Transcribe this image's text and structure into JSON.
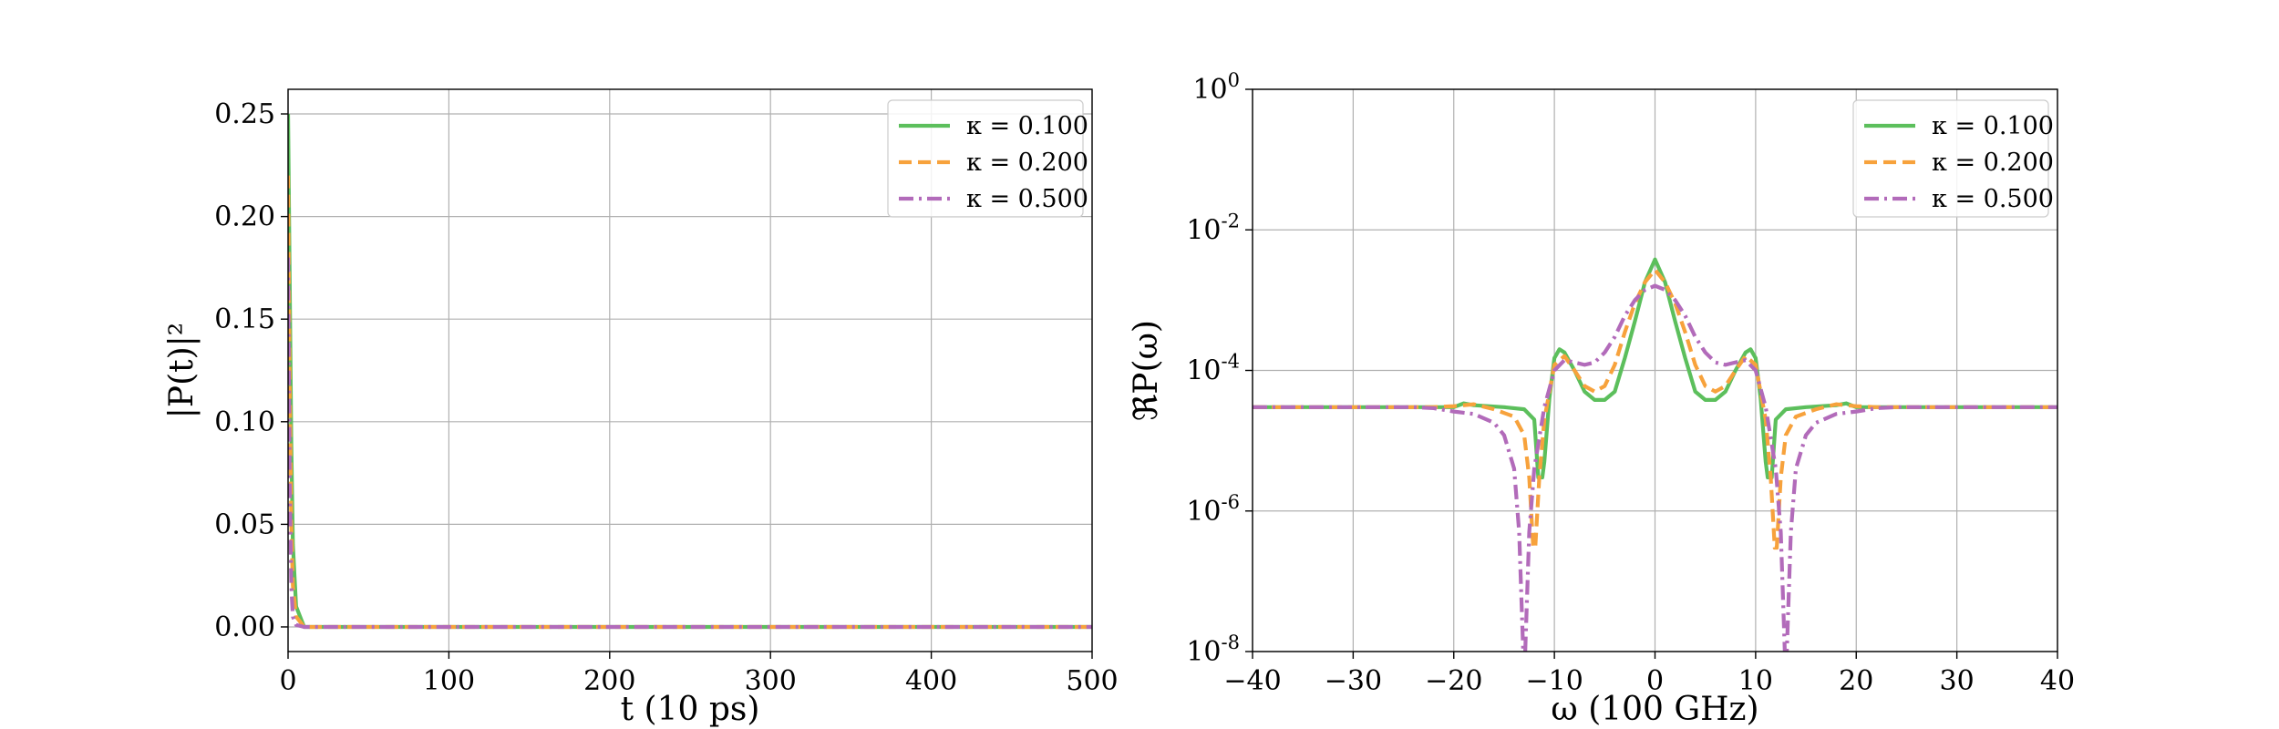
{
  "colors": {
    "green": "#5cbf5c",
    "orange": "#f7a23c",
    "purple": "#b26bba"
  },
  "chart_data": [
    {
      "type": "line",
      "xlabel": "t (10 ps)",
      "ylabel": "|P(t)|²",
      "xlim": [
        0,
        500
      ],
      "ylim": [
        -0.012,
        0.262
      ],
      "xticks": [
        0,
        100,
        200,
        300,
        400,
        500
      ],
      "xtick_labels": [
        "0",
        "100",
        "200",
        "300",
        "400",
        "500"
      ],
      "yticks": [
        0.0,
        0.05,
        0.1,
        0.15,
        0.2,
        0.25
      ],
      "ytick_labels": [
        "0.00",
        "0.05",
        "0.10",
        "0.15",
        "0.20",
        "0.25"
      ],
      "grid": true,
      "legend": "top-right",
      "series": [
        {
          "name": "κ = 0.100",
          "color": "#5cbf5c",
          "dash": "solid",
          "x": [
            0,
            1,
            2,
            3,
            5,
            10,
            500
          ],
          "y": [
            0.25,
            0.17,
            0.09,
            0.04,
            0.01,
            0.0,
            0.0
          ]
        },
        {
          "name": "κ = 0.200",
          "color": "#f7a23c",
          "dash": "dashed",
          "x": [
            0,
            1,
            2,
            3,
            5,
            10,
            500
          ],
          "y": [
            0.22,
            0.12,
            0.05,
            0.02,
            0.005,
            0.0,
            0.0
          ]
        },
        {
          "name": "κ = 0.500",
          "color": "#b26bba",
          "dash": "dashdot",
          "x": [
            0,
            1,
            2,
            3,
            5,
            10,
            500
          ],
          "y": [
            0.18,
            0.07,
            0.02,
            0.005,
            0.001,
            0.0,
            0.0
          ]
        }
      ]
    },
    {
      "type": "line",
      "xlabel": "ω (100 GHz)",
      "ylabel": "ℜP(ω)",
      "xlim": [
        -40,
        40
      ],
      "ylim": [
        1e-08,
        1
      ],
      "yscale": "log",
      "xticks": [
        -40,
        -30,
        -20,
        -10,
        0,
        10,
        20,
        30,
        40
      ],
      "xtick_labels": [
        "−40",
        "−30",
        "−20",
        "−10",
        "0",
        "10",
        "20",
        "30",
        "40"
      ],
      "yticks": [
        1e-08,
        1e-06,
        0.0001,
        0.01,
        1
      ],
      "ytick_base": [
        "10",
        "10",
        "10",
        "10",
        "10"
      ],
      "ytick_exponents": [
        "-8",
        "-6",
        "-4",
        "-2",
        "0"
      ],
      "grid": true,
      "legend": "top-right",
      "series": [
        {
          "name": "κ = 0.100",
          "color": "#5cbf5c",
          "dash": "solid",
          "x": [
            -40,
            -20,
            -19,
            -18,
            -15,
            -13,
            -12,
            -11.6,
            -11.2,
            -11,
            -10.5,
            -10,
            -9.5,
            -9,
            -8,
            -7,
            -6,
            -5,
            -4,
            -3,
            -2,
            -1,
            0,
            1,
            2,
            3,
            4,
            5,
            6,
            7,
            8,
            9,
            9.5,
            10,
            10.5,
            11,
            11.2,
            11.6,
            12,
            13,
            15,
            18,
            19,
            20,
            40
          ],
          "y": [
            3e-05,
            3e-05,
            3.4e-05,
            3.2e-05,
            3e-05,
            2.8e-05,
            2e-05,
            3e-06,
            3e-06,
            5e-06,
            4e-05,
            0.00015,
            0.0002,
            0.00018,
            0.0001,
            5e-05,
            3.8e-05,
            3.8e-05,
            5e-05,
            0.00015,
            0.0005,
            0.0018,
            0.0038,
            0.0018,
            0.0005,
            0.00015,
            5e-05,
            3.8e-05,
            3.8e-05,
            5e-05,
            0.0001,
            0.00018,
            0.0002,
            0.00015,
            4e-05,
            5e-06,
            3e-06,
            3e-06,
            2e-05,
            2.8e-05,
            3e-05,
            3.2e-05,
            3.4e-05,
            3e-05,
            3e-05
          ]
        },
        {
          "name": "κ = 0.200",
          "color": "#f7a23c",
          "dash": "dashed",
          "x": [
            -40,
            -22,
            -20,
            -18,
            -16,
            -14,
            -13,
            -12.5,
            -12.1,
            -11.9,
            -11.5,
            -11,
            -10,
            -9,
            -8,
            -7,
            -6,
            -5,
            -4,
            -3,
            -2,
            -1,
            0,
            1,
            2,
            3,
            4,
            5,
            6,
            7,
            8,
            9,
            10,
            11,
            11.5,
            11.9,
            12.1,
            12.5,
            13,
            14,
            16,
            18,
            20,
            22,
            40
          ],
          "y": [
            3e-05,
            3e-05,
            3.1e-05,
            3.3e-05,
            2.8e-05,
            2.2e-05,
            1.2e-05,
            3e-06,
            3e-07,
            3e-07,
            3e-06,
            2e-05,
            0.00012,
            0.00016,
            0.0001,
            6e-05,
            5e-05,
            6e-05,
            0.00012,
            0.00035,
            0.0009,
            0.0018,
            0.0027,
            0.0018,
            0.0009,
            0.00035,
            0.00012,
            6e-05,
            5e-05,
            6e-05,
            0.0001,
            0.00016,
            0.00012,
            2e-05,
            3e-06,
            3e-07,
            3e-07,
            3e-06,
            1.2e-05,
            2.2e-05,
            2.8e-05,
            3.3e-05,
            3.1e-05,
            3e-05,
            3e-05
          ]
        },
        {
          "name": "κ = 0.500",
          "color": "#b26bba",
          "dash": "dashdot",
          "x": [
            -40,
            -24,
            -22,
            -20,
            -18,
            -16,
            -15,
            -14,
            -13.5,
            -13.1,
            -12.9,
            -12.5,
            -12,
            -11,
            -10,
            -9,
            -8,
            -7,
            -6,
            -5,
            -4,
            -3,
            -2,
            -1,
            0,
            1,
            2,
            3,
            4,
            5,
            6,
            7,
            8,
            9,
            10,
            11,
            12,
            12.5,
            12.9,
            13.1,
            13.5,
            14,
            15,
            16,
            18,
            20,
            22,
            24,
            40
          ],
          "y": [
            3e-05,
            3e-05,
            2.9e-05,
            2.6e-05,
            2.4e-05,
            1.8e-05,
            1.2e-05,
            4e-06,
            5e-07,
            1e-08,
            1e-08,
            5e-07,
            4e-06,
            3e-05,
            0.0001,
            0.00014,
            0.00013,
            0.00012,
            0.00013,
            0.00018,
            0.0003,
            0.0006,
            0.001,
            0.0014,
            0.0016,
            0.0014,
            0.001,
            0.0006,
            0.0003,
            0.00018,
            0.00013,
            0.00012,
            0.00013,
            0.00014,
            0.0001,
            3e-05,
            4e-06,
            5e-07,
            1e-08,
            1e-08,
            5e-07,
            4e-06,
            1.2e-05,
            1.8e-05,
            2.4e-05,
            2.6e-05,
            2.9e-05,
            3e-05,
            3e-05
          ]
        }
      ]
    }
  ]
}
